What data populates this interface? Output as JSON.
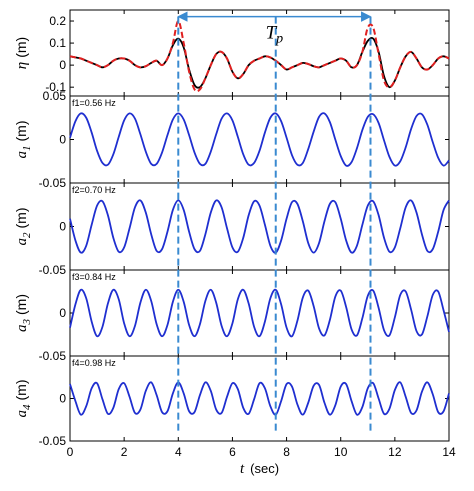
{
  "chart_data": [
    {
      "type": "line",
      "ylabel": {
        "symbol": "η",
        "unit": "(m)"
      },
      "x": [
        0,
        0.2,
        0.4,
        0.6,
        0.8,
        1,
        1.2,
        1.4,
        1.6,
        1.8,
        2,
        2.2,
        2.4,
        2.6,
        2.8,
        3,
        3.2,
        3.4,
        3.6,
        3.8,
        4,
        4.2,
        4.4,
        4.6,
        4.8,
        5,
        5.2,
        5.4,
        5.6,
        5.8,
        6,
        6.2,
        6.4,
        6.6,
        6.8,
        7,
        7.2,
        7.4,
        7.6,
        7.8,
        8,
        8.2,
        8.4,
        8.6,
        8.8,
        9,
        9.2,
        9.4,
        9.6,
        9.8,
        10,
        10.2,
        10.4,
        10.6,
        10.8,
        11,
        11.2,
        11.4,
        11.6,
        11.8,
        12,
        12.2,
        12.4,
        12.6,
        12.8,
        13,
        13.2,
        13.4,
        13.6,
        13.8,
        14
      ],
      "series": [
        {
          "color": "#000000",
          "style": "solid",
          "values": [
            0.04,
            0.035,
            0.03,
            0.02,
            0.01,
            0,
            -0.01,
            0,
            0.02,
            0.03,
            0.03,
            0.02,
            0,
            -0.01,
            -0.005,
            0.01,
            0.02,
            0,
            0.03,
            0.09,
            0.12,
            0.08,
            -0.02,
            -0.09,
            -0.1,
            -0.06,
            0,
            0.05,
            0.06,
            0.03,
            -0.03,
            -0.06,
            -0.04,
            0,
            0.02,
            0.03,
            0.04,
            0.035,
            0.02,
            0,
            -0.02,
            -0.01,
            0,
            0.01,
            0.005,
            -0.005,
            -0.01,
            0,
            0.01,
            0.02,
            0.03,
            0.02,
            -0.01,
            0,
            0.06,
            0.11,
            0.12,
            0.06,
            -0.05,
            -0.1,
            -0.07,
            -0.01,
            0.04,
            0.06,
            0.03,
            -0.01,
            -0.02,
            0,
            0.03,
            0.04,
            0.03
          ]
        },
        {
          "color": "#e02020",
          "style": "dashed",
          "values": [
            0.04,
            0.035,
            0.03,
            0.02,
            0.01,
            0,
            -0.01,
            0,
            0.02,
            0.03,
            0.03,
            0.02,
            0,
            -0.01,
            -0.005,
            0.01,
            0.02,
            0,
            0.03,
            0.1,
            0.2,
            0.1,
            -0.03,
            -0.11,
            -0.11,
            -0.06,
            0,
            0.05,
            0.06,
            0.03,
            -0.03,
            -0.06,
            -0.04,
            0,
            0.02,
            0.03,
            0.04,
            0.035,
            0.02,
            0,
            -0.02,
            -0.01,
            0,
            0.01,
            0.005,
            -0.005,
            -0.01,
            0,
            0.01,
            0.02,
            0.03,
            0.02,
            -0.01,
            0,
            0.06,
            0.17,
            0.17,
            0.05,
            -0.07,
            -0.1,
            -0.07,
            -0.01,
            0.04,
            0.06,
            0.03,
            -0.01,
            -0.02,
            0,
            0.03,
            0.04,
            0.03
          ]
        }
      ],
      "xlim": [
        0,
        14
      ],
      "xticks": [
        0,
        2,
        4,
        6,
        8,
        10,
        12,
        14
      ],
      "ylim": [
        -0.14,
        0.25
      ],
      "yticks": [
        -0.1,
        0,
        0.1,
        0.2
      ],
      "vlines": [
        4,
        7.6,
        11.1
      ],
      "vline_color": "#3a8ad0",
      "span": {
        "text": "T",
        "subscript": "p",
        "from": 4,
        "to": 11.1,
        "y": 0.22
      }
    },
    {
      "type": "line",
      "label": "f1=0.56 Hz",
      "ylabel": {
        "symbol": "a",
        "subscript": "1",
        "unit": "(m)"
      },
      "x": [
        0,
        0.2,
        0.4,
        0.6,
        0.8,
        1,
        1.2,
        1.4,
        1.6,
        1.8,
        2,
        2.2,
        2.4,
        2.6,
        2.8,
        3,
        3.2,
        3.4,
        3.6,
        3.8,
        4,
        4.2,
        4.4,
        4.6,
        4.8,
        5,
        5.2,
        5.4,
        5.6,
        5.8,
        6,
        6.2,
        6.4,
        6.6,
        6.8,
        7,
        7.2,
        7.4,
        7.6,
        7.8,
        8,
        8.2,
        8.4,
        8.6,
        8.8,
        9,
        9.2,
        9.4,
        9.6,
        9.8,
        10,
        10.2,
        10.4,
        10.6,
        10.8,
        11,
        11.2,
        11.4,
        11.6,
        11.8,
        12,
        12.2,
        12.4,
        12.6,
        12.8,
        13,
        13.2,
        13.4,
        13.6,
        13.8,
        14
      ],
      "series": [
        {
          "color": "#1f2fd0",
          "style": "solid",
          "values": [
            0.002,
            0.021,
            0.03,
            0.025,
            0.008,
            -0.013,
            -0.027,
            -0.029,
            -0.017,
            0.003,
            0.022,
            0.03,
            0.024,
            0.006,
            -0.014,
            -0.028,
            -0.028,
            -0.015,
            0.005,
            0.023,
            0.03,
            0.023,
            0.005,
            -0.015,
            -0.028,
            -0.028,
            -0.014,
            0.006,
            0.024,
            0.03,
            0.022,
            0.003,
            -0.017,
            -0.029,
            -0.027,
            -0.013,
            0.008,
            0.025,
            0.03,
            0.021,
            0.002,
            -0.018,
            -0.029,
            -0.027,
            -0.011,
            0.009,
            0.026,
            0.03,
            0.02,
            0,
            -0.019,
            -0.03,
            -0.026,
            -0.01,
            0.011,
            0.026,
            0.029,
            0.019,
            -0.001,
            -0.02,
            -0.03,
            -0.025,
            -0.009,
            0.012,
            0.027,
            0.029,
            0.017,
            -0.003,
            -0.021,
            -0.03,
            -0.024
          ]
        }
      ],
      "xlim": [
        0,
        14
      ],
      "xticks": [
        0,
        2,
        4,
        6,
        8,
        10,
        12,
        14
      ],
      "ylim": [
        -0.05,
        0.05
      ],
      "yticks": [
        -0.05,
        0,
        0.05
      ]
    },
    {
      "type": "line",
      "label": "f2=0.70 Hz",
      "ylabel": {
        "symbol": "a",
        "subscript": "2",
        "unit": "(m)"
      },
      "x": [
        0,
        0.2,
        0.4,
        0.6,
        0.8,
        1,
        1.2,
        1.4,
        1.6,
        1.8,
        2,
        2.2,
        2.4,
        2.6,
        2.8,
        3,
        3.2,
        3.4,
        3.6,
        3.8,
        4,
        4.2,
        4.4,
        4.6,
        4.8,
        5,
        5.2,
        5.4,
        5.6,
        5.8,
        6,
        6.2,
        6.4,
        6.6,
        6.8,
        7,
        7.2,
        7.4,
        7.6,
        7.8,
        8,
        8.2,
        8.4,
        8.6,
        8.8,
        9,
        9.2,
        9.4,
        9.6,
        9.8,
        10,
        10.2,
        10.4,
        10.6,
        10.8,
        11,
        11.2,
        11.4,
        11.6,
        11.8,
        12,
        12.2,
        12.4,
        12.6,
        12.8,
        13,
        13.2,
        13.4,
        13.6,
        13.8,
        14
      ],
      "series": [
        {
          "color": "#1f2fd0",
          "style": "solid",
          "values": [
            0.009,
            -0.016,
            -0.03,
            -0.022,
            0.002,
            0.024,
            0.029,
            0.013,
            -0.013,
            -0.029,
            -0.024,
            -0.002,
            0.022,
            0.03,
            0.016,
            -0.009,
            -0.028,
            -0.026,
            -0.006,
            0.019,
            0.03,
            0.019,
            -0.006,
            -0.026,
            -0.028,
            -0.009,
            0.016,
            0.03,
            0.022,
            -0.002,
            -0.024,
            -0.029,
            -0.013,
            0.013,
            0.029,
            0.024,
            0.002,
            -0.022,
            -0.03,
            -0.016,
            0.009,
            0.028,
            0.026,
            0.006,
            -0.019,
            -0.03,
            -0.019,
            0.006,
            0.026,
            0.028,
            0.009,
            -0.016,
            -0.03,
            -0.022,
            0.002,
            0.024,
            0.029,
            0.013,
            -0.013,
            -0.029,
            -0.024,
            -0.002,
            0.022,
            0.03,
            0.016,
            -0.009,
            -0.028,
            -0.026,
            -0.006,
            0.019,
            0.03
          ]
        }
      ],
      "xlim": [
        0,
        14
      ],
      "xticks": [
        0,
        2,
        4,
        6,
        8,
        10,
        12,
        14
      ],
      "ylim": [
        -0.05,
        0.05
      ],
      "yticks": [
        -0.05,
        0
      ]
    },
    {
      "type": "line",
      "label": "f3=0.84 Hz",
      "ylabel": {
        "symbol": "a",
        "subscript": "3",
        "unit": "(m)"
      },
      "x": [
        0,
        0.2,
        0.4,
        0.6,
        0.8,
        1,
        1.2,
        1.4,
        1.6,
        1.8,
        2,
        2.2,
        2.4,
        2.6,
        2.8,
        3,
        3.2,
        3.4,
        3.6,
        3.8,
        4,
        4.2,
        4.4,
        4.6,
        4.8,
        5,
        5.2,
        5.4,
        5.6,
        5.8,
        6,
        6.2,
        6.4,
        6.6,
        6.8,
        7,
        7.2,
        7.4,
        7.6,
        7.8,
        8,
        8.2,
        8.4,
        8.6,
        8.8,
        9,
        9.2,
        9.4,
        9.6,
        9.8,
        10,
        10.2,
        10.4,
        10.6,
        10.8,
        11,
        11.2,
        11.4,
        11.6,
        11.8,
        12,
        12.2,
        12.4,
        12.6,
        12.8,
        13,
        13.2,
        13.4,
        13.6,
        13.8,
        14
      ],
      "series": [
        {
          "color": "#1f2fd0",
          "style": "solid",
          "values": [
            -0.017,
            0.01,
            0.027,
            0.017,
            -0.01,
            -0.027,
            -0.016,
            0.011,
            0.027,
            0.016,
            -0.012,
            -0.027,
            -0.015,
            0.012,
            0.027,
            0.014,
            -0.013,
            -0.027,
            -0.014,
            0.013,
            0.027,
            0.013,
            -0.014,
            -0.027,
            -0.013,
            0.014,
            0.027,
            0.012,
            -0.015,
            -0.027,
            -0.012,
            0.016,
            0.027,
            0.011,
            -0.016,
            -0.027,
            -0.01,
            0.017,
            0.027,
            0.01,
            -0.017,
            -0.027,
            -0.009,
            0.018,
            0.026,
            0.008,
            -0.018,
            -0.026,
            -0.008,
            0.019,
            0.026,
            0.007,
            -0.019,
            -0.026,
            -0.006,
            0.02,
            0.026,
            0.006,
            -0.02,
            -0.026,
            -0.005,
            0.021,
            0.025,
            0.004,
            -0.021,
            -0.025,
            -0.004,
            0.021,
            0.025,
            0.003,
            -0.022
          ]
        }
      ],
      "xlim": [
        0,
        14
      ],
      "xticks": [
        0,
        2,
        4,
        6,
        8,
        10,
        12,
        14
      ],
      "ylim": [
        -0.05,
        0.05
      ],
      "yticks": [
        -0.05,
        0
      ]
    },
    {
      "type": "line",
      "label": "f4=0.98 Hz",
      "ylabel": {
        "symbol": "a",
        "subscript": "4",
        "unit": "(m)"
      },
      "xlabel": {
        "symbol": "t",
        "unit": "(sec)"
      },
      "xtick_labels": true,
      "x": [
        0,
        0.2,
        0.4,
        0.6,
        0.8,
        1,
        1.2,
        1.4,
        1.6,
        1.8,
        2,
        2.2,
        2.4,
        2.6,
        2.8,
        3,
        3.2,
        3.4,
        3.6,
        3.8,
        4,
        4.2,
        4.4,
        4.6,
        4.8,
        5,
        5.2,
        5.4,
        5.6,
        5.8,
        6,
        6.2,
        6.4,
        6.6,
        6.8,
        7,
        7.2,
        7.4,
        7.6,
        7.8,
        8,
        8.2,
        8.4,
        8.6,
        8.8,
        9,
        9.2,
        9.4,
        9.6,
        9.8,
        10,
        10.2,
        10.4,
        10.6,
        10.8,
        11,
        11.2,
        11.4,
        11.6,
        11.8,
        12,
        12.2,
        12.4,
        12.6,
        12.8,
        13,
        13.2,
        13.4,
        13.6,
        13.8,
        14
      ],
      "series": [
        {
          "color": "#1f2fd0",
          "style": "solid",
          "values": [
            0.017,
            -0.003,
            -0.019,
            -0.009,
            0.012,
            0.018,
            -0.001,
            -0.018,
            -0.011,
            0.011,
            0.018,
            0.002,
            -0.017,
            -0.013,
            0.009,
            0.019,
            0.004,
            -0.016,
            -0.015,
            0.006,
            0.019,
            0.006,
            -0.015,
            -0.016,
            0.004,
            0.019,
            0.009,
            -0.013,
            -0.017,
            0.002,
            0.018,
            0.011,
            -0.011,
            -0.018,
            -0.001,
            0.018,
            0.012,
            -0.009,
            -0.019,
            -0.003,
            0.017,
            0.014,
            -0.007,
            -0.019,
            -0.005,
            0.015,
            0.016,
            -0.005,
            -0.019,
            -0.008,
            0.014,
            0.017,
            -0.003,
            -0.019,
            -0.01,
            0.012,
            0.018,
            0,
            -0.018,
            -0.012,
            0.01,
            0.019,
            0.002,
            -0.017,
            -0.014,
            0.008,
            0.019,
            0.005,
            -0.016,
            -0.015,
            0.006
          ]
        }
      ],
      "xlim": [
        0,
        14
      ],
      "xticks": [
        0,
        2,
        4,
        6,
        8,
        10,
        12,
        14
      ],
      "ylim": [
        -0.05,
        0.05
      ],
      "yticks": [
        -0.05,
        0
      ]
    }
  ]
}
